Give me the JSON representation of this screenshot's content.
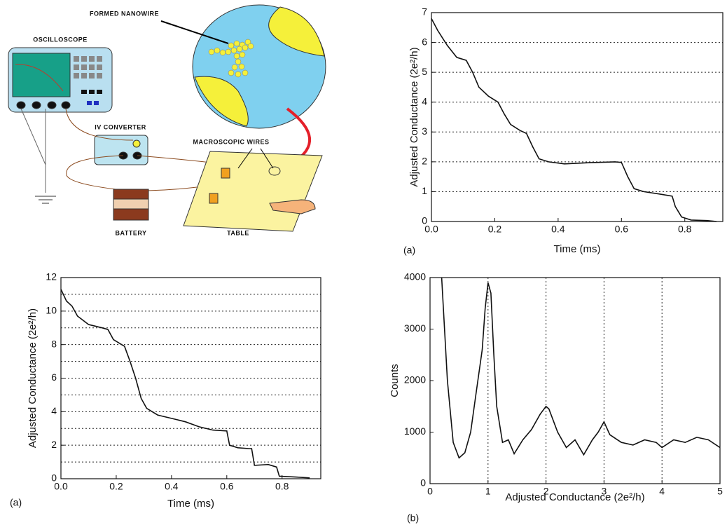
{
  "diagram": {
    "labels": {
      "nanowire": "FORMED NANOWIRE",
      "oscilloscope": "OSCILLOSCOPE",
      "converter": "IV CONVERTER",
      "wires": "MACROSCOPIC WIRES",
      "battery": "BATTERY",
      "table": "TABLE"
    }
  },
  "chart_data": [
    {
      "type": "line",
      "panel_label": "(a)",
      "x_label": "Time (ms)",
      "y_label": "Adjusted Conductance (2e²/h)",
      "color": "#111111",
      "x": [
        0,
        0.02,
        0.05,
        0.08,
        0.11,
        0.13,
        0.15,
        0.18,
        0.21,
        0.23,
        0.25,
        0.28,
        0.3,
        0.32,
        0.34,
        0.37,
        0.42,
        0.5,
        0.58,
        0.6,
        0.62,
        0.64,
        0.67,
        0.72,
        0.76,
        0.77,
        0.79,
        0.82,
        0.87,
        0.9
      ],
      "values": [
        6.8,
        6.4,
        5.9,
        5.5,
        5.4,
        5.0,
        4.5,
        4.2,
        4.0,
        3.6,
        3.25,
        3.05,
        2.95,
        2.5,
        2.1,
        2.0,
        1.93,
        1.97,
        2.0,
        1.98,
        1.5,
        1.1,
        1.0,
        0.92,
        0.85,
        0.5,
        0.15,
        0.05,
        0.03,
        0.0
      ],
      "xlim": [
        0,
        0.92
      ],
      "ylim": [
        0,
        7
      ],
      "xticks": [
        {
          "value": 0,
          "label": "0.0"
        },
        0.2,
        0.4,
        0.6,
        0.8
      ],
      "yticks": [
        0,
        1,
        2,
        3,
        4,
        5,
        6,
        7
      ],
      "grid_axis": "y",
      "grid_lines": [
        1,
        2,
        3,
        4,
        5,
        6
      ]
    },
    {
      "type": "line",
      "panel_label": "(a)",
      "x_label": "Time (ms)",
      "y_label": "Adjusted Conductance (2e²/h)",
      "color": "#111111",
      "x": [
        0,
        0.02,
        0.04,
        0.06,
        0.1,
        0.15,
        0.17,
        0.19,
        0.22,
        0.23,
        0.25,
        0.27,
        0.29,
        0.31,
        0.35,
        0.4,
        0.45,
        0.5,
        0.55,
        0.6,
        0.61,
        0.64,
        0.68,
        0.69,
        0.7,
        0.75,
        0.78,
        0.79,
        0.85,
        0.9
      ],
      "values": [
        11.3,
        10.6,
        10.3,
        9.7,
        9.2,
        9.0,
        8.9,
        8.3,
        8.0,
        7.9,
        7.0,
        6.0,
        4.8,
        4.2,
        3.8,
        3.6,
        3.4,
        3.1,
        2.9,
        2.85,
        2.0,
        1.85,
        1.8,
        1.8,
        0.8,
        0.85,
        0.7,
        0.15,
        0.1,
        0.05
      ],
      "xlim": [
        0,
        0.94
      ],
      "ylim": [
        0,
        12
      ],
      "xticks": [
        {
          "value": 0,
          "label": "0.0"
        },
        0.2,
        0.4,
        0.6,
        0.8
      ],
      "yticks": [
        0,
        2,
        4,
        6,
        8,
        10,
        12
      ],
      "grid_axis": "y",
      "grid_lines": [
        1,
        2,
        3,
        4,
        5,
        6,
        7,
        8,
        9,
        10,
        11
      ]
    },
    {
      "type": "line",
      "panel_label": "(b)",
      "x_label": "Adjusted Conductance (2e²/h)",
      "y_label": "Counts",
      "color": "#111111",
      "x": [
        0.2,
        0.3,
        0.4,
        0.5,
        0.6,
        0.7,
        0.8,
        0.9,
        0.95,
        1.0,
        1.05,
        1.1,
        1.15,
        1.25,
        1.35,
        1.45,
        1.6,
        1.75,
        1.9,
        2.0,
        2.05,
        2.2,
        2.35,
        2.5,
        2.65,
        2.8,
        2.9,
        3.0,
        3.1,
        3.3,
        3.5,
        3.7,
        3.9,
        4.0,
        4.2,
        4.4,
        4.6,
        4.8,
        5.0
      ],
      "values": [
        4000,
        2000,
        800,
        500,
        600,
        1000,
        1800,
        2600,
        3400,
        3900,
        3700,
        2500,
        1500,
        800,
        850,
        580,
        850,
        1050,
        1350,
        1500,
        1450,
        1000,
        700,
        850,
        560,
        850,
        1000,
        1200,
        950,
        800,
        750,
        850,
        800,
        700,
        850,
        800,
        900,
        850,
        700
      ],
      "xlim": [
        0,
        5
      ],
      "ylim": [
        0,
        4000
      ],
      "xticks": [
        0,
        1,
        2,
        3,
        4,
        5
      ],
      "yticks": [
        0,
        1000,
        2000,
        3000,
        4000
      ],
      "grid_axis": "x",
      "grid_lines": [
        1,
        2,
        3,
        4
      ]
    }
  ]
}
